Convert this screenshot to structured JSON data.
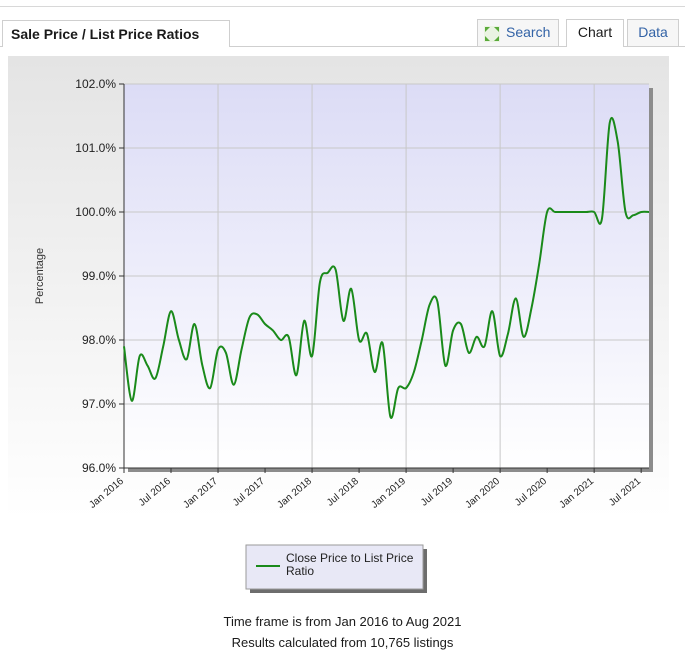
{
  "header": {
    "title": "Sale Price / List Price Ratios",
    "tabs": {
      "search": "Search",
      "chart": "Chart",
      "data": "Data"
    },
    "active_tab": "Chart"
  },
  "chart_data": {
    "type": "line",
    "ylabel": "Percentage",
    "ylim": [
      96.0,
      102.0
    ],
    "yticks": [
      "96.0%",
      "97.0%",
      "98.0%",
      "99.0%",
      "100.0%",
      "101.0%",
      "102.0%"
    ],
    "xlim": [
      "2016-01",
      "2021-08"
    ],
    "xticks": [
      "Jan 2016",
      "Jul 2016",
      "Jan 2017",
      "Jul 2017",
      "Jan 2018",
      "Jul 2018",
      "Jan 2019",
      "Jul 2019",
      "Jan 2020",
      "Jul 2020",
      "Jan 2021",
      "Jul 2021"
    ],
    "grid": true,
    "legend_position": "bottom-center",
    "series": [
      {
        "name": "Close Price to List Price Ratio",
        "color": "#1a8a1a",
        "x": [
          "2016-01",
          "2016-02",
          "2016-03",
          "2016-04",
          "2016-05",
          "2016-06",
          "2016-07",
          "2016-08",
          "2016-09",
          "2016-10",
          "2016-11",
          "2016-12",
          "2017-01",
          "2017-02",
          "2017-03",
          "2017-04",
          "2017-05",
          "2017-06",
          "2017-07",
          "2017-08",
          "2017-09",
          "2017-10",
          "2017-11",
          "2017-12",
          "2018-01",
          "2018-02",
          "2018-03",
          "2018-04",
          "2018-05",
          "2018-06",
          "2018-07",
          "2018-08",
          "2018-09",
          "2018-10",
          "2018-11",
          "2018-12",
          "2019-01",
          "2019-02",
          "2019-03",
          "2019-04",
          "2019-05",
          "2019-06",
          "2019-07",
          "2019-08",
          "2019-09",
          "2019-10",
          "2019-11",
          "2019-12",
          "2020-01",
          "2020-02",
          "2020-03",
          "2020-04",
          "2020-05",
          "2020-06",
          "2020-07",
          "2020-08",
          "2020-09",
          "2020-10",
          "2020-11",
          "2020-12",
          "2021-01",
          "2021-02",
          "2021-03",
          "2021-04",
          "2021-05",
          "2021-06",
          "2021-07",
          "2021-08"
        ],
        "values": [
          97.9,
          97.05,
          97.75,
          97.6,
          97.4,
          97.9,
          98.45,
          98.0,
          97.7,
          98.25,
          97.6,
          97.25,
          97.85,
          97.8,
          97.3,
          97.85,
          98.35,
          98.4,
          98.25,
          98.15,
          98.0,
          98.05,
          97.45,
          98.3,
          97.75,
          98.9,
          99.05,
          99.1,
          98.3,
          98.8,
          98.0,
          98.1,
          97.5,
          97.95,
          96.8,
          97.25,
          97.25,
          97.5,
          98.0,
          98.55,
          98.6,
          97.6,
          98.15,
          98.25,
          97.8,
          98.05,
          97.9,
          98.45,
          97.75,
          98.1,
          98.65,
          98.05,
          98.5,
          99.2,
          100.0,
          100.0,
          100.0,
          100.0,
          100.0,
          100.0,
          100.0,
          99.9,
          101.4,
          101.1,
          100.0,
          99.95,
          100.0,
          100.0
        ]
      }
    ]
  },
  "footer": {
    "timeframe": "Time frame is from Jan 2016 to Aug 2021",
    "results": "Results calculated from 10,765 listings"
  }
}
